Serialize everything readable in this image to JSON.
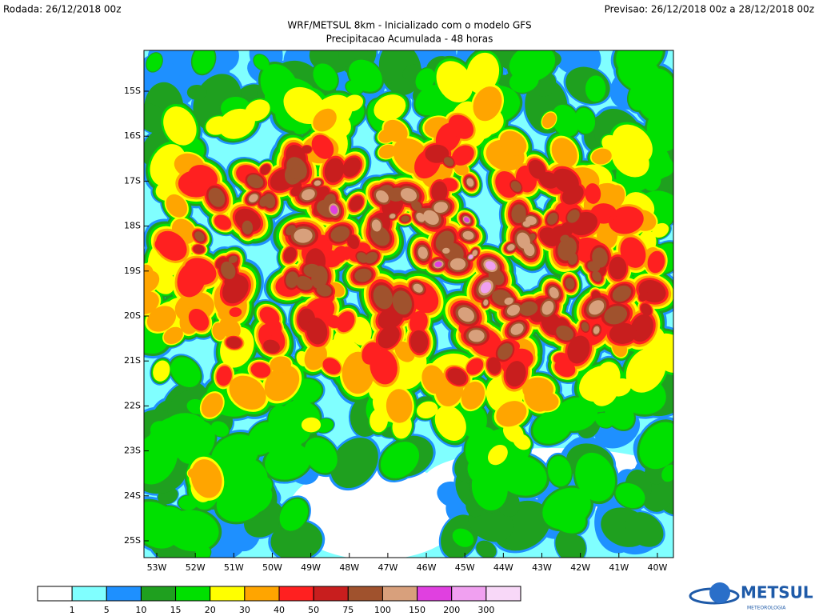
{
  "header": {
    "run": "Rodada: 26/12/2018 00z",
    "forecast": "Previsao: 26/12/2018 00z a 28/12/2018 00z",
    "title": "WRF/METSUL 8km - Inicializado com o modelo GFS",
    "subtitle": "Precipitacao Acumulada - 48 horas"
  },
  "map": {
    "lat_labels": [
      "15S",
      "16S",
      "17S",
      "18S",
      "19S",
      "20S",
      "21S",
      "22S",
      "23S",
      "24S",
      "25S"
    ],
    "lon_labels": [
      "53W",
      "52W",
      "51W",
      "50W",
      "49W",
      "48W",
      "47W",
      "46W",
      "45W",
      "44W",
      "43W",
      "42W",
      "41W",
      "40W"
    ]
  },
  "legend": {
    "labels": [
      "1",
      "5",
      "10",
      "15",
      "20",
      "30",
      "40",
      "50",
      "75",
      "100",
      "150",
      "200",
      "300"
    ],
    "colors": [
      "#ffffff",
      "#80ffff",
      "#1e90ff",
      "#1fa01f",
      "#00e000",
      "#ffff00",
      "#ffa500",
      "#ff2020",
      "#c81e1e",
      "#a0522d",
      "#d8a07c",
      "#e040e0",
      "#f0a0f0",
      "#f8d8f8"
    ]
  },
  "logo": {
    "name": "METSUL",
    "tagline": "METEOROLOGIA"
  }
}
